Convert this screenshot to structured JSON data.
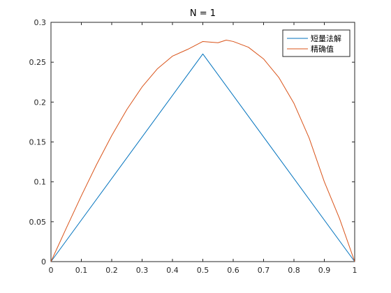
{
  "chart_data": {
    "type": "line",
    "title": "N = 1",
    "xlabel": "",
    "ylabel": "",
    "xlim": [
      0,
      1
    ],
    "ylim": [
      0,
      0.3
    ],
    "xticks": [
      "0",
      "0.1",
      "0.2",
      "0.3",
      "0.4",
      "0.5",
      "0.6",
      "0.7",
      "0.8",
      "0.9",
      "1"
    ],
    "yticks": [
      "0",
      "0.05",
      "0.1",
      "0.15",
      "0.2",
      "0.25",
      "0.3"
    ],
    "grid": false,
    "legend_position": "top-right",
    "series": [
      {
        "name": "短量法解",
        "color": "#0072BD",
        "x": [
          0,
          0.5,
          1
        ],
        "y": [
          0,
          0.2604,
          0
        ]
      },
      {
        "name": "精确值",
        "color": "#D95319",
        "x": [
          0,
          0.05,
          0.1,
          0.15,
          0.2,
          0.25,
          0.3,
          0.35,
          0.4,
          0.45,
          0.5,
          0.55,
          0.577,
          0.6,
          0.65,
          0.7,
          0.75,
          0.8,
          0.85,
          0.9,
          0.95,
          1.0
        ],
        "y": [
          0,
          0.0416,
          0.0825,
          0.1216,
          0.158,
          0.1908,
          0.219,
          0.2416,
          0.2576,
          0.2661,
          0.276,
          0.2744,
          0.2777,
          0.276,
          0.2688,
          0.2541,
          0.231,
          0.1984,
          0.155,
          0.1001,
          0.0541,
          0
        ]
      }
    ]
  }
}
